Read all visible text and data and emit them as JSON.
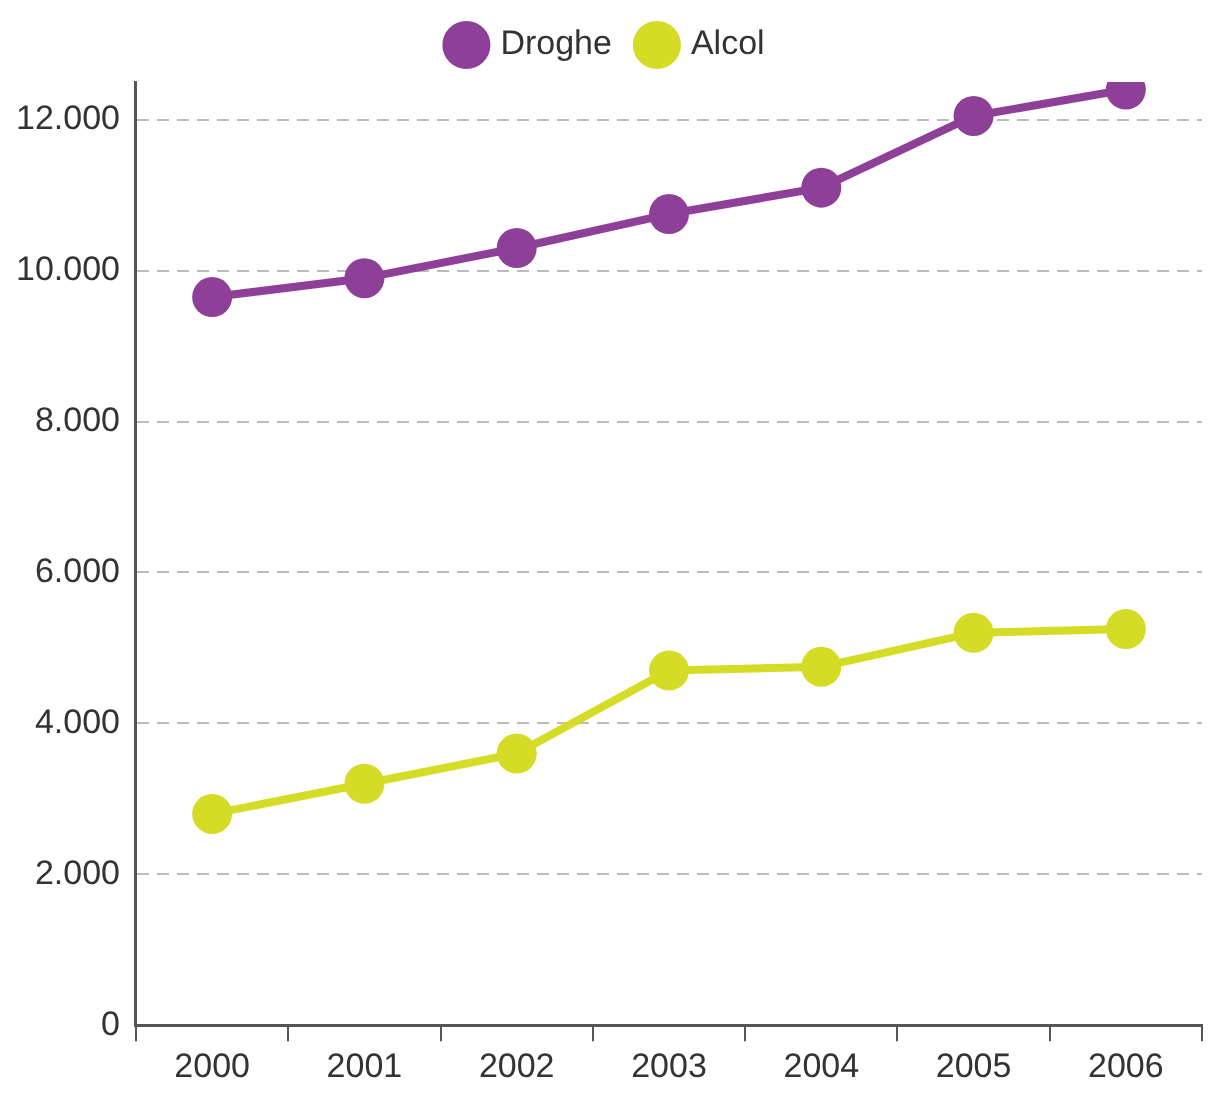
{
  "chart_data": {
    "type": "line",
    "categories": [
      "2000",
      "2001",
      "2002",
      "2003",
      "2004",
      "2005",
      "2006"
    ],
    "series": [
      {
        "name": "Droghe",
        "color": "#8e3f97",
        "values": [
          9650,
          9900,
          10300,
          10750,
          11100,
          12050,
          12400
        ]
      },
      {
        "name": "Alcol",
        "color": "#d4dc26",
        "values": [
          2800,
          3200,
          3600,
          4700,
          4750,
          5200,
          5250
        ]
      }
    ],
    "ylim": [
      0,
      12500
    ],
    "yticks": [
      {
        "value": 0,
        "label": "0"
      },
      {
        "value": 2000,
        "label": "2.000"
      },
      {
        "value": 4000,
        "label": "4.000"
      },
      {
        "value": 6000,
        "label": "6.000"
      },
      {
        "value": 8000,
        "label": "8.000"
      },
      {
        "value": 10000,
        "label": "10.000"
      },
      {
        "value": 12000,
        "label": "12.000"
      }
    ],
    "grid": "y",
    "legend": "top",
    "marker": "circle",
    "line_style": "solid"
  }
}
